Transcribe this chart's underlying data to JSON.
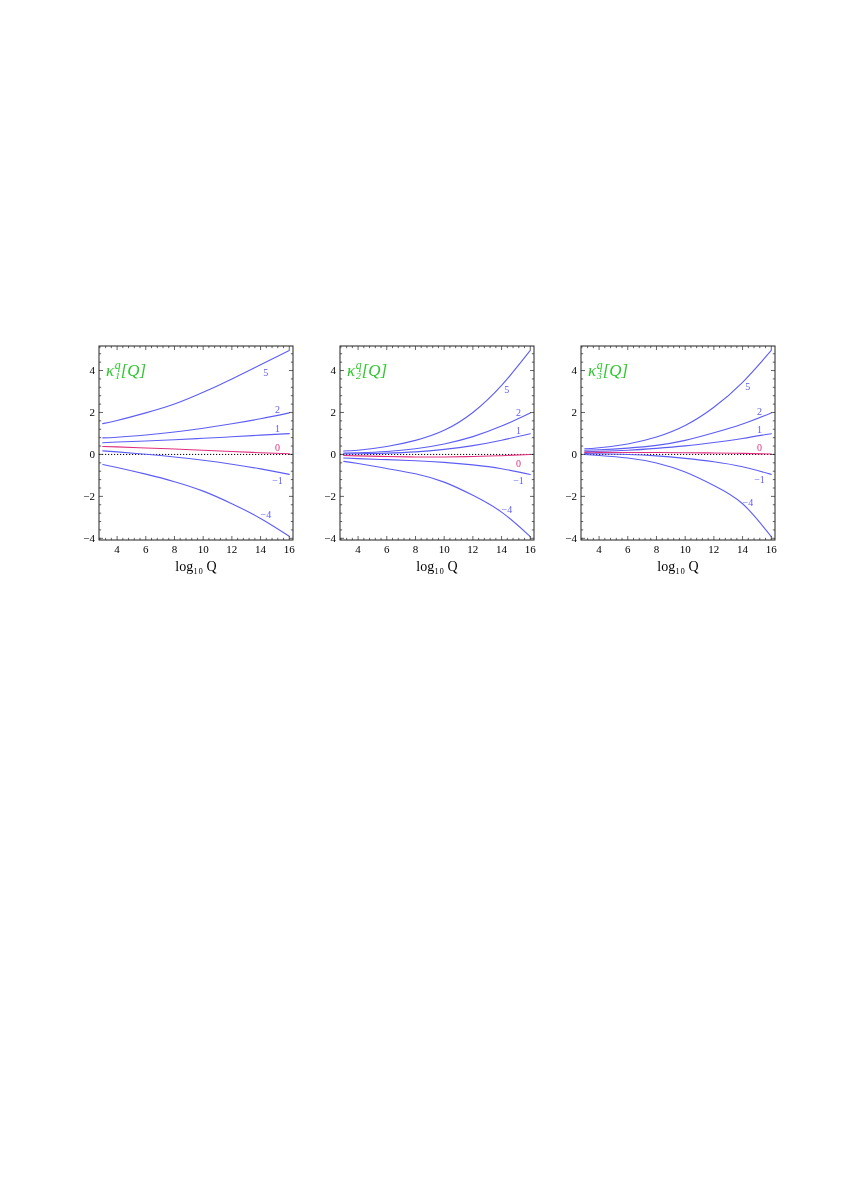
{
  "chart_data": [
    {
      "type": "line",
      "title": "κ₁$^{q}$[Q]",
      "xlabel": "log₁₀ Q",
      "x": [
        3,
        4,
        6,
        8,
        10,
        12,
        14,
        16
      ],
      "series": [
        {
          "name": "5",
          "color": "#5d5df5",
          "values": [
            1.47,
            1.62,
            1.98,
            2.4,
            2.96,
            3.6,
            4.28,
            4.96
          ]
        },
        {
          "name": "2",
          "color": "#5d5df5",
          "values": [
            0.79,
            0.82,
            0.93,
            1.07,
            1.25,
            1.46,
            1.7,
            1.98
          ]
        },
        {
          "name": "1",
          "color": "#5d5df5",
          "values": [
            0.56,
            0.59,
            0.64,
            0.7,
            0.77,
            0.84,
            0.92,
            0.99
          ]
        },
        {
          "name": "0",
          "color": "#e0307f",
          "values": [
            0.38,
            0.36,
            0.31,
            0.26,
            0.2,
            0.14,
            0.08,
            0.03
          ]
        },
        {
          "name": "−1",
          "color": "#5d5df5",
          "values": [
            0.17,
            0.12,
            0.01,
            -0.12,
            -0.28,
            -0.47,
            -0.69,
            -0.95
          ]
        },
        {
          "name": "−4",
          "color": "#5d5df5",
          "values": [
            -0.48,
            -0.62,
            -0.94,
            -1.3,
            -1.75,
            -2.35,
            -3.05,
            -3.9
          ]
        }
      ],
      "xlim": [
        2.74,
        16.26
      ],
      "ylim": [
        -4.08,
        5.17
      ],
      "xticks": [
        {
          "value": 2.8,
          "label": null
        },
        {
          "value": 3.2,
          "label": null
        },
        {
          "value": 3.6,
          "label": null
        },
        4,
        {
          "value": 4.4,
          "label": null
        },
        {
          "value": 4.8,
          "label": null
        },
        {
          "value": 5.2,
          "label": null
        },
        {
          "value": 5.6,
          "label": null
        },
        6,
        {
          "value": 6.4,
          "label": null
        },
        {
          "value": 6.8,
          "label": null
        },
        {
          "value": 7.2,
          "label": null
        },
        {
          "value": 7.6,
          "label": null
        },
        8,
        {
          "value": 8.4,
          "label": null
        },
        {
          "value": 8.8,
          "label": null
        },
        {
          "value": 9.2,
          "label": null
        },
        {
          "value": 9.6,
          "label": null
        },
        10,
        {
          "value": 10.4,
          "label": null
        },
        {
          "value": 10.8,
          "label": null
        },
        {
          "value": 11.2,
          "label": null
        },
        {
          "value": 11.6,
          "label": null
        },
        12,
        {
          "value": 12.4,
          "label": null
        },
        {
          "value": 12.8,
          "label": null
        },
        {
          "value": 13.2,
          "label": null
        },
        {
          "value": 13.6,
          "label": null
        },
        14,
        {
          "value": 14.4,
          "label": null
        },
        {
          "value": 14.8,
          "label": null
        },
        {
          "value": 15.2,
          "label": null
        },
        {
          "value": 15.6,
          "label": null
        },
        16
      ],
      "yticks": [
        {
          "value": -4,
          "label": "−4"
        },
        {
          "value": -3.6,
          "label": null
        },
        {
          "value": -3.2,
          "label": null
        },
        {
          "value": -2.8,
          "label": null
        },
        {
          "value": -2.4,
          "label": null
        },
        {
          "value": -2,
          "label": "−2"
        },
        {
          "value": -1.6,
          "label": null
        },
        {
          "value": -1.2,
          "label": null
        },
        {
          "value": -0.8,
          "label": null
        },
        {
          "value": -0.4,
          "label": null
        },
        0,
        {
          "value": 0.4,
          "label": null
        },
        {
          "value": 0.8,
          "label": null
        },
        {
          "value": 1.2,
          "label": null
        },
        {
          "value": 1.6,
          "label": null
        },
        2,
        {
          "value": 2.4,
          "label": null
        },
        {
          "value": 2.8,
          "label": null
        },
        {
          "value": 3.2,
          "label": null
        },
        {
          "value": 3.6,
          "label": null
        },
        4,
        {
          "value": 4.4,
          "label": null
        },
        {
          "value": 4.8,
          "label": null
        }
      ],
      "ref_lines": [
        {
          "axis": "y",
          "value": 0,
          "color": "#000000",
          "line_style": "dotted"
        }
      ]
    },
    {
      "type": "line",
      "title": "κ₂$^{q}$[Q]",
      "xlabel": "log₁₀ Q",
      "x": [
        3,
        4,
        6,
        8,
        10,
        12,
        14,
        16
      ],
      "series": [
        {
          "name": "5",
          "color": "#5d5df5",
          "values": [
            0.16,
            0.2,
            0.38,
            0.67,
            1.15,
            2.0,
            3.29,
            4.96
          ]
        },
        {
          "name": "2",
          "color": "#5d5df5",
          "values": [
            0.06,
            0.08,
            0.14,
            0.27,
            0.5,
            0.85,
            1.35,
            1.98
          ]
        },
        {
          "name": "1",
          "color": "#5d5df5",
          "values": [
            0.02,
            0.03,
            0.06,
            0.12,
            0.24,
            0.42,
            0.68,
            0.99
          ]
        },
        {
          "name": "0",
          "color": "#e0307f",
          "values": [
            -0.05,
            -0.07,
            -0.1,
            -0.12,
            -0.12,
            -0.1,
            -0.06,
            0.0
          ]
        },
        {
          "name": "−1",
          "color": "#5d5df5",
          "values": [
            -0.17,
            -0.2,
            -0.25,
            -0.3,
            -0.38,
            -0.5,
            -0.68,
            -0.96
          ]
        },
        {
          "name": "−4",
          "color": "#5d5df5",
          "values": [
            -0.33,
            -0.43,
            -0.67,
            -0.92,
            -1.32,
            -1.95,
            -2.75,
            -3.92
          ]
        }
      ],
      "xlim": [
        2.74,
        16.26
      ],
      "ylim": [
        -4.08,
        5.17
      ],
      "xticks": [
        {
          "value": 2.8,
          "label": null
        },
        {
          "value": 3.2,
          "label": null
        },
        {
          "value": 3.6,
          "label": null
        },
        4,
        {
          "value": 4.4,
          "label": null
        },
        {
          "value": 4.8,
          "label": null
        },
        {
          "value": 5.2,
          "label": null
        },
        {
          "value": 5.6,
          "label": null
        },
        6,
        {
          "value": 6.4,
          "label": null
        },
        {
          "value": 6.8,
          "label": null
        },
        {
          "value": 7.2,
          "label": null
        },
        {
          "value": 7.6,
          "label": null
        },
        8,
        {
          "value": 8.4,
          "label": null
        },
        {
          "value": 8.8,
          "label": null
        },
        {
          "value": 9.2,
          "label": null
        },
        {
          "value": 9.6,
          "label": null
        },
        10,
        {
          "value": 10.4,
          "label": null
        },
        {
          "value": 10.8,
          "label": null
        },
        {
          "value": 11.2,
          "label": null
        },
        {
          "value": 11.6,
          "label": null
        },
        12,
        {
          "value": 12.4,
          "label": null
        },
        {
          "value": 12.8,
          "label": null
        },
        {
          "value": 13.2,
          "label": null
        },
        {
          "value": 13.6,
          "label": null
        },
        14,
        {
          "value": 14.4,
          "label": null
        },
        {
          "value": 14.8,
          "label": null
        },
        {
          "value": 15.2,
          "label": null
        },
        {
          "value": 15.6,
          "label": null
        },
        16
      ],
      "yticks": [
        {
          "value": -4,
          "label": "−4"
        },
        {
          "value": -3.6,
          "label": null
        },
        {
          "value": -3.2,
          "label": null
        },
        {
          "value": -2.8,
          "label": null
        },
        {
          "value": -2.4,
          "label": null
        },
        {
          "value": -2,
          "label": "−2"
        },
        {
          "value": -1.6,
          "label": null
        },
        {
          "value": -1.2,
          "label": null
        },
        {
          "value": -0.8,
          "label": null
        },
        {
          "value": -0.4,
          "label": null
        },
        0,
        {
          "value": 0.4,
          "label": null
        },
        {
          "value": 0.8,
          "label": null
        },
        {
          "value": 1.2,
          "label": null
        },
        {
          "value": 1.6,
          "label": null
        },
        2,
        {
          "value": 2.4,
          "label": null
        },
        {
          "value": 2.8,
          "label": null
        },
        {
          "value": 3.2,
          "label": null
        },
        {
          "value": 3.6,
          "label": null
        },
        4,
        {
          "value": 4.4,
          "label": null
        },
        {
          "value": 4.8,
          "label": null
        }
      ],
      "ref_lines": [
        {
          "axis": "y",
          "value": 0,
          "color": "#000000",
          "line_style": "dotted"
        }
      ]
    },
    {
      "type": "line",
      "title": "κ₃$^{q}$[Q]",
      "xlabel": "log₁₀ Q",
      "x": [
        3,
        4,
        6,
        8,
        10,
        12,
        14,
        16
      ],
      "series": [
        {
          "name": "5",
          "color": "#5d5df5",
          "values": [
            0.27,
            0.32,
            0.5,
            0.83,
            1.38,
            2.25,
            3.44,
            4.96
          ]
        },
        {
          "name": "2",
          "color": "#5d5df5",
          "values": [
            0.2,
            0.22,
            0.3,
            0.43,
            0.67,
            1.03,
            1.45,
            1.98
          ]
        },
        {
          "name": "1",
          "color": "#5d5df5",
          "values": [
            0.13,
            0.15,
            0.2,
            0.29,
            0.41,
            0.57,
            0.76,
            0.99
          ]
        },
        {
          "name": "0",
          "color": "#e0307f",
          "values": [
            0.1,
            0.1,
            0.09,
            0.09,
            0.08,
            0.07,
            0.05,
            0.02
          ]
        },
        {
          "name": "−1",
          "color": "#5d5df5",
          "values": [
            0.04,
            0.03,
            0.0,
            -0.07,
            -0.19,
            -0.35,
            -0.59,
            -0.95
          ]
        },
        {
          "name": "−4",
          "color": "#5d5df5",
          "values": [
            0.0,
            -0.05,
            -0.17,
            -0.41,
            -0.84,
            -1.48,
            -2.35,
            -3.92
          ]
        }
      ],
      "xlim": [
        2.74,
        16.26
      ],
      "ylim": [
        -4.08,
        5.17
      ],
      "xticks": [
        {
          "value": 2.8,
          "label": null
        },
        {
          "value": 3.2,
          "label": null
        },
        {
          "value": 3.6,
          "label": null
        },
        4,
        {
          "value": 4.4,
          "label": null
        },
        {
          "value": 4.8,
          "label": null
        },
        {
          "value": 5.2,
          "label": null
        },
        {
          "value": 5.6,
          "label": null
        },
        6,
        {
          "value": 6.4,
          "label": null
        },
        {
          "value": 6.8,
          "label": null
        },
        {
          "value": 7.2,
          "label": null
        },
        {
          "value": 7.6,
          "label": null
        },
        8,
        {
          "value": 8.4,
          "label": null
        },
        {
          "value": 8.8,
          "label": null
        },
        {
          "value": 9.2,
          "label": null
        },
        {
          "value": 9.6,
          "label": null
        },
        10,
        {
          "value": 10.4,
          "label": null
        },
        {
          "value": 10.8,
          "label": null
        },
        {
          "value": 11.2,
          "label": null
        },
        {
          "value": 11.6,
          "label": null
        },
        12,
        {
          "value": 12.4,
          "label": null
        },
        {
          "value": 12.8,
          "label": null
        },
        {
          "value": 13.2,
          "label": null
        },
        {
          "value": 13.6,
          "label": null
        },
        14,
        {
          "value": 14.4,
          "label": null
        },
        {
          "value": 14.8,
          "label": null
        },
        {
          "value": 15.2,
          "label": null
        },
        {
          "value": 15.6,
          "label": null
        },
        16
      ],
      "yticks": [
        {
          "value": -4,
          "label": "−4"
        },
        {
          "value": -3.6,
          "label": null
        },
        {
          "value": -3.2,
          "label": null
        },
        {
          "value": -2.8,
          "label": null
        },
        {
          "value": -2.4,
          "label": null
        },
        {
          "value": -2,
          "label": "−2"
        },
        {
          "value": -1.6,
          "label": null
        },
        {
          "value": -1.2,
          "label": null
        },
        {
          "value": -0.8,
          "label": null
        },
        {
          "value": -0.4,
          "label": null
        },
        0,
        {
          "value": 0.4,
          "label": null
        },
        {
          "value": 0.8,
          "label": null
        },
        {
          "value": 1.2,
          "label": null
        },
        {
          "value": 1.6,
          "label": null
        },
        2,
        {
          "value": 2.4,
          "label": null
        },
        {
          "value": 2.8,
          "label": null
        },
        {
          "value": 3.2,
          "label": null
        },
        {
          "value": 3.6,
          "label": null
        },
        4,
        {
          "value": 4.4,
          "label": null
        },
        {
          "value": 4.8,
          "label": null
        }
      ],
      "ref_lines": [
        {
          "axis": "y",
          "value": 0,
          "color": "#000000",
          "line_style": "dotted"
        }
      ]
    }
  ]
}
